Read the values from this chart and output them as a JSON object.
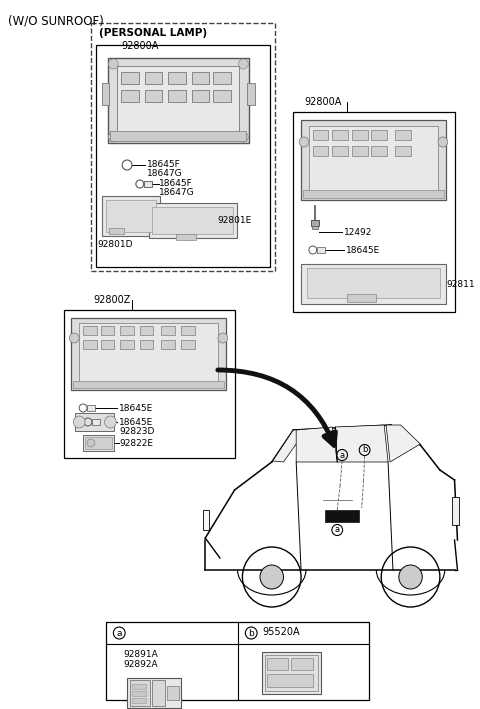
{
  "bg_color": "#ffffff",
  "title": "(W/O SUNROOF)",
  "personal_lamp_label": "(PERSONAL LAMP)",
  "part_92800A": "92800A",
  "part_92800Z": "92800Z",
  "part_92801D": "92801D",
  "part_92801E": "92801E",
  "part_18645F_1": "18645F",
  "part_18647G_1": "18647G",
  "part_18645F_2": "18645F",
  "part_18647G_2": "18647G",
  "part_12492": "12492",
  "part_18645E_r": "18645E",
  "part_92811": "92811",
  "part_18645E_m1": "18645E",
  "part_18645E_m2": "18645E",
  "part_92823D": "92823D",
  "part_92822E": "92822E",
  "part_92891A": "92891A",
  "part_92892A": "92892A",
  "part_95520A": "95520A",
  "circle_a": "a",
  "circle_b": "b"
}
